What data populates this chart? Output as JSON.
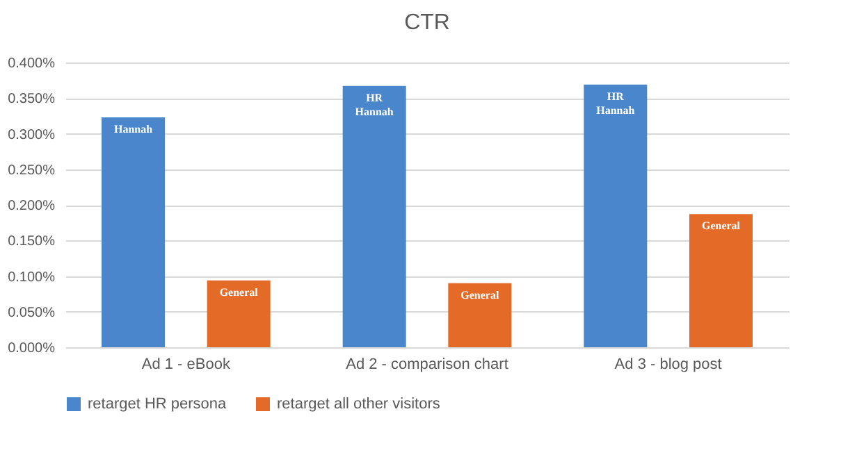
{
  "chart_data": {
    "type": "bar",
    "title": "CTR",
    "categories": [
      "Ad 1 - eBook",
      "Ad 2 - comparison chart",
      "Ad 3 - blog post"
    ],
    "series": [
      {
        "name": "retarget HR persona",
        "color": "#4a86cb",
        "values": [
          0.323,
          0.367,
          0.369
        ],
        "value_labels": [
          "Hannah",
          "HR\nHannah",
          "HR\nHannah"
        ]
      },
      {
        "name": "retarget all other visitors",
        "color": "#e46a27",
        "values": [
          0.094,
          0.09,
          0.187
        ],
        "value_labels": [
          "General",
          "General",
          "General"
        ]
      }
    ],
    "ylim": [
      0,
      0.4
    ],
    "yticks": [
      {
        "value": 0,
        "label": "0.000%"
      },
      {
        "value": 0.05,
        "label": "0.050%"
      },
      {
        "value": 0.1,
        "label": "0.100%"
      },
      {
        "value": 0.15,
        "label": "0.150%"
      },
      {
        "value": 0.2,
        "label": "0.200%"
      },
      {
        "value": 0.25,
        "label": "0.250%"
      },
      {
        "value": 0.3,
        "label": "0.300%"
      },
      {
        "value": 0.35,
        "label": "0.350%"
      },
      {
        "value": 0.4,
        "label": "0.400%"
      }
    ],
    "grid": "y",
    "legend": "bottom"
  }
}
